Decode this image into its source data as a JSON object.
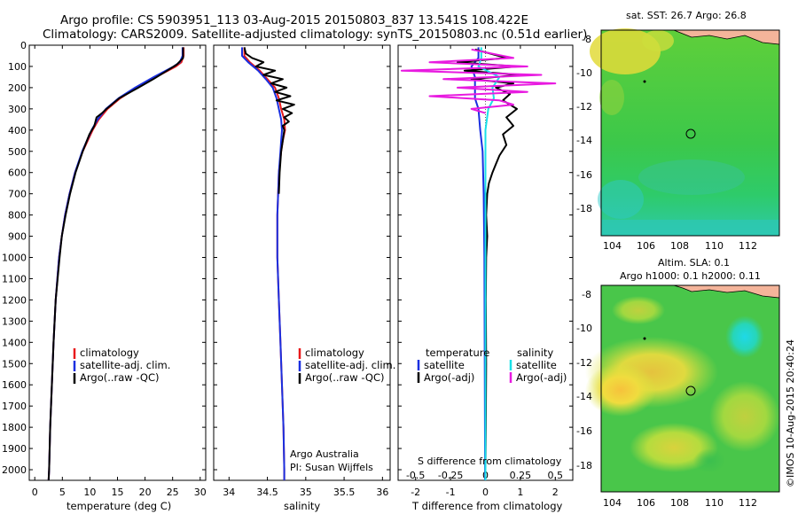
{
  "header": {
    "line1": "Argo profile: CS 5903951_113 03-Aug-2015 20150803_837 13.541S 108.422E",
    "line2": "Climatology: CARS2009. Satellite-adjusted climatology: synTS_20150803.nc (0.51d earlier)"
  },
  "colors": {
    "climatology": "#e8191b",
    "satellite": "#1a2fe0",
    "argo": "#000000",
    "sal_satellite": "#19e0e8",
    "sal_argo": "#e81ae0",
    "land": "#f4b49a"
  },
  "chart_data": [
    {
      "type": "line",
      "name": "temperature-profile",
      "xlabel": "temperature (deg C)",
      "ylabel": "depth",
      "xlim": [
        -1,
        31
      ],
      "ylim": [
        2050,
        0
      ],
      "xticks": [
        0,
        5,
        10,
        15,
        20,
        25,
        30
      ],
      "yticks": [
        0,
        100,
        200,
        300,
        400,
        500,
        600,
        700,
        800,
        900,
        1000,
        1100,
        1200,
        1300,
        1400,
        1500,
        1600,
        1700,
        1800,
        1900,
        2000
      ],
      "legend": [
        "climatology",
        "satellite-adj. clim.",
        "Argo(..raw -QC)"
      ],
      "series": [
        {
          "name": "climatology",
          "depth": [
            10,
            50,
            80,
            100,
            150,
            200,
            250,
            300,
            350,
            400,
            500,
            600,
            700,
            800,
            900,
            1000,
            1200,
            1400,
            1600,
            1800,
            2000,
            2050
          ],
          "values": [
            27,
            27,
            26.6,
            25.6,
            22,
            18.5,
            15.5,
            13.2,
            11.6,
            10.5,
            8.7,
            7.3,
            6.3,
            5.5,
            4.9,
            4.4,
            3.8,
            3.4,
            3.1,
            2.8,
            2.6,
            2.5
          ]
        },
        {
          "name": "satellite",
          "depth": [
            10,
            50,
            80,
            100,
            150,
            200,
            250,
            300,
            350,
            400,
            500,
            600,
            700,
            800,
            900,
            1000,
            1200,
            1400,
            1600,
            1800,
            2000,
            2050
          ],
          "values": [
            26.8,
            26.8,
            26.3,
            25.2,
            21.6,
            18.2,
            15.2,
            12.9,
            11.4,
            10.3,
            8.6,
            7.3,
            6.3,
            5.5,
            4.9,
            4.4,
            3.8,
            3.4,
            3.1,
            2.8,
            2.6,
            2.5
          ]
        },
        {
          "name": "argo",
          "depth": [
            10,
            60,
            90,
            120,
            160,
            200,
            250,
            300,
            320,
            340,
            380,
            420,
            500,
            600,
            700,
            800,
            900,
            1000,
            1200,
            1400,
            1600,
            1800,
            2000,
            2050
          ],
          "values": [
            26.9,
            26.9,
            25.8,
            24,
            21.5,
            18.8,
            15.3,
            13,
            12.2,
            11.2,
            10.8,
            9.9,
            8.7,
            7.4,
            6.4,
            5.6,
            4.9,
            4.5,
            3.8,
            3.4,
            3.1,
            2.8,
            2.6,
            2.5
          ]
        }
      ]
    },
    {
      "type": "line",
      "name": "salinity-profile",
      "xlabel": "salinity",
      "xlim": [
        33.8,
        36.1
      ],
      "ylim": [
        2050,
        0
      ],
      "xticks": [
        34,
        34.5,
        35,
        35.5,
        36
      ],
      "legend": [
        "climatology",
        "satellite-adj. clim.",
        "Argo(..raw -QC)"
      ],
      "annotation": [
        "Argo Australia",
        "PI: Susan Wijffels"
      ],
      "series": [
        {
          "name": "climatology",
          "depth": [
            10,
            50,
            80,
            120,
            160,
            200,
            250,
            300,
            350,
            400,
            450,
            500,
            600,
            700,
            800,
            1000,
            1200,
            1400,
            1600,
            1800,
            2000,
            2050
          ],
          "values": [
            34.2,
            34.2,
            34.27,
            34.4,
            34.5,
            34.6,
            34.65,
            34.68,
            34.72,
            34.73,
            34.7,
            34.68,
            34.65,
            34.64,
            34.63,
            34.63,
            34.65,
            34.67,
            34.69,
            34.71,
            34.72,
            34.72
          ]
        },
        {
          "name": "satellite",
          "depth": [
            10,
            50,
            80,
            120,
            160,
            200,
            250,
            300,
            350,
            400,
            450,
            500,
            600,
            700,
            800,
            1000,
            1200,
            1400,
            1600,
            1800,
            2000,
            2050
          ],
          "values": [
            34.17,
            34.17,
            34.25,
            34.38,
            34.48,
            34.57,
            34.62,
            34.65,
            34.68,
            34.69,
            34.68,
            34.67,
            34.65,
            34.64,
            34.63,
            34.63,
            34.65,
            34.67,
            34.69,
            34.71,
            34.72,
            34.72
          ]
        },
        {
          "name": "argo",
          "depth": [
            10,
            40,
            60,
            80,
            100,
            120,
            140,
            160,
            180,
            200,
            220,
            240,
            260,
            280,
            300,
            320,
            340,
            360,
            380,
            400,
            450,
            500,
            600,
            700
          ],
          "values": [
            34.2,
            34.22,
            34.3,
            34.45,
            34.35,
            34.6,
            34.45,
            34.7,
            34.55,
            34.75,
            34.6,
            34.8,
            34.62,
            34.85,
            34.7,
            34.82,
            34.72,
            34.78,
            34.7,
            34.72,
            34.7,
            34.68,
            34.66,
            34.65
          ]
        }
      ]
    },
    {
      "type": "line",
      "name": "difference-profile",
      "xlabel": "T difference from climatology",
      "x2label": "S difference from climatology",
      "xlim": [
        -2.5,
        2.5
      ],
      "ylim": [
        2050,
        0
      ],
      "xticks": [
        -2,
        -1,
        0,
        1,
        2
      ],
      "x2ticks": [
        "-0.5",
        "-0.25",
        "0",
        "0.25",
        "0.5"
      ],
      "legend_temperature": [
        "temperature",
        "satellite",
        "Argo(-adj)"
      ],
      "legend_salinity": [
        "salinity",
        "satellite",
        "Argo(-adj)"
      ],
      "series": [
        {
          "name": "T satellite",
          "depth": [
            10,
            60,
            100,
            150,
            200,
            250,
            300,
            400,
            500,
            700,
            1000,
            1500,
            2000,
            2050
          ],
          "values": [
            -0.2,
            -0.2,
            -0.4,
            -0.3,
            -0.3,
            -0.3,
            -0.2,
            -0.15,
            -0.08,
            -0.05,
            -0.03,
            -0.02,
            -0.01,
            -0.01
          ]
        },
        {
          "name": "T argo",
          "depth": [
            20,
            60,
            80,
            100,
            120,
            140,
            160,
            180,
            200,
            230,
            260,
            300,
            340,
            380,
            420,
            470,
            520,
            560,
            600,
            650,
            700,
            800,
            900,
            1000,
            1200,
            1500,
            1800,
            2000
          ],
          "values": [
            -0.3,
            0.6,
            -0.8,
            0.9,
            -0.6,
            1,
            -0.4,
            0.8,
            0.3,
            0.7,
            0.5,
            0.9,
            0.6,
            0.8,
            0.5,
            0.6,
            0.4,
            0.3,
            0.2,
            0.1,
            0.05,
            0.02,
            0.05,
            0.02,
            0.01,
            0.02,
            0.01,
            0.0
          ]
        },
        {
          "name": "S satellite",
          "depth": [
            10,
            60,
            100,
            150,
            200,
            250,
            300,
            400,
            500,
            700,
            1000,
            1500,
            2000,
            2050
          ],
          "values": [
            -0.03,
            -0.03,
            -0.05,
            0.1,
            0.05,
            0.06,
            0.02,
            0.0,
            0.0,
            0.0,
            0.0,
            0.0,
            0.0,
            0.0
          ]
        },
        {
          "name": "S argo",
          "depth": [
            20,
            60,
            80,
            100,
            120,
            140,
            160,
            180,
            200,
            220,
            240,
            260,
            280,
            300,
            320
          ],
          "values": [
            -0.1,
            0.2,
            -0.4,
            0.3,
            -0.6,
            0.4,
            -0.3,
            0.5,
            -0.2,
            0.3,
            -0.4,
            0.1,
            0.2,
            -0.1,
            0.0
          ]
        }
      ]
    }
  ],
  "maps": {
    "sst": {
      "title": "sat. SST: 26.7  Argo: 26.8",
      "yticks": [
        "-8",
        "-10",
        "-12",
        "-14",
        "-16",
        "-18"
      ],
      "xticks": [
        "104",
        "106",
        "108",
        "110",
        "112"
      ]
    },
    "sla": {
      "title1": "Altim. SLA: 0.1",
      "title2": "Argo h1000: 0.1  h2000: 0.11",
      "yticks": [
        "-8",
        "-10",
        "-12",
        "-14",
        "-16",
        "-18"
      ],
      "xticks": [
        "104",
        "106",
        "108",
        "110",
        "112"
      ]
    }
  },
  "credit": "©IMOS 10-Aug-2015 20:40:24"
}
